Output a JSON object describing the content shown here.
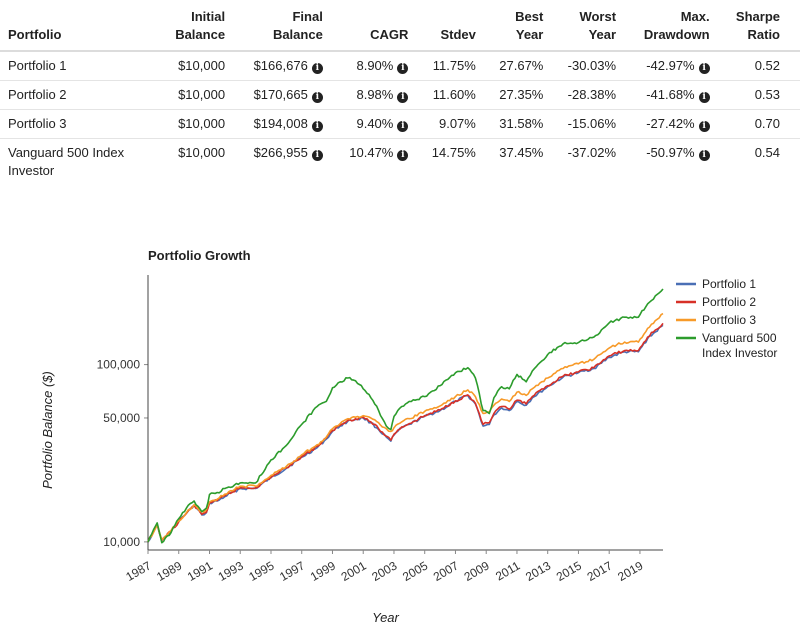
{
  "summary_table": {
    "headers": [
      {
        "line1": "",
        "line2": "Portfolio"
      },
      {
        "line1": "Initial",
        "line2": "Balance"
      },
      {
        "line1": "Final",
        "line2": "Balance"
      },
      {
        "line1": "",
        "line2": "CAGR"
      },
      {
        "line1": "",
        "line2": "Stdev"
      },
      {
        "line1": "Best",
        "line2": "Year"
      },
      {
        "line1": "Worst",
        "line2": "Year"
      },
      {
        "line1": "Max.",
        "line2": "Drawdown"
      },
      {
        "line1": "Sharpe",
        "line2": "Ratio"
      }
    ],
    "rows": [
      {
        "portfolio": "Portfolio 1",
        "portfolio2": "",
        "initial": "$10,000",
        "final": "$166,676",
        "cagr": "8.90%",
        "stdev": "11.75%",
        "best": "27.67%",
        "worst": "-30.03%",
        "drawdown": "-42.97%",
        "sharpe": "0.52"
      },
      {
        "portfolio": "Portfolio 2",
        "portfolio2": "",
        "initial": "$10,000",
        "final": "$170,665",
        "cagr": "8.98%",
        "stdev": "11.60%",
        "best": "27.35%",
        "worst": "-28.38%",
        "drawdown": "-41.68%",
        "sharpe": "0.53"
      },
      {
        "portfolio": "Portfolio 3",
        "portfolio2": "",
        "initial": "$10,000",
        "final": "$194,008",
        "cagr": "9.40%",
        "stdev": "9.07%",
        "best": "31.58%",
        "worst": "-15.06%",
        "drawdown": "-27.42%",
        "sharpe": "0.70"
      },
      {
        "portfolio": "Vanguard 500 Index",
        "portfolio2": "Investor",
        "initial": "$10,000",
        "final": "$266,955",
        "cagr": "10.47%",
        "stdev": "14.75%",
        "best": "37.45%",
        "worst": "-37.02%",
        "drawdown": "-50.97%",
        "sharpe": "0.54"
      }
    ],
    "info_glyph": "i"
  },
  "chart_data": {
    "type": "line",
    "title": "Portfolio Growth",
    "xlabel": "Year",
    "ylabel": "Portfolio Balance ($)",
    "yscale": "log",
    "ylim": [
      9000,
      300000
    ],
    "xlim": [
      1987,
      2020.5
    ],
    "yticks": [
      10000,
      50000,
      100000
    ],
    "ytick_labels": [
      "10,000",
      "50,000",
      "100,000"
    ],
    "xticks": [
      "1987",
      "1989",
      "1991",
      "1993",
      "1995",
      "1997",
      "1999",
      "2001",
      "2003",
      "2005",
      "2007",
      "2009",
      "2011",
      "2013",
      "2015",
      "2017",
      "2019"
    ],
    "legend_position": "right",
    "x": [
      1987,
      1987.6,
      1987.9,
      1988.5,
      1989,
      1989.5,
      1990,
      1990.5,
      1990.8,
      1991,
      1991.5,
      1992,
      1993,
      1994,
      1995,
      1996,
      1997,
      1998,
      1998.6,
      1999,
      1999.5,
      2000,
      2000.5,
      2001,
      2001.5,
      2002,
      2002.5,
      2002.8,
      2003,
      2003.5,
      2004,
      2005,
      2006,
      2007,
      2007.8,
      2008.3,
      2008.8,
      2009.2,
      2009.5,
      2010,
      2010.5,
      2011,
      2011.6,
      2012,
      2013,
      2014,
      2015,
      2016,
      2017,
      2018,
      2018.9,
      2019.5,
      2020.5
    ],
    "series": [
      {
        "name": "Portfolio 1",
        "color": "#4a6fb5",
        "values": [
          10000,
          12500,
          10200,
          11500,
          13000,
          14500,
          16000,
          14200,
          14600,
          16500,
          17000,
          18000,
          20000,
          20000,
          23000,
          26000,
          30000,
          34000,
          38000,
          42000,
          45000,
          48000,
          49000,
          50000,
          47000,
          43000,
          39000,
          37000,
          40000,
          44000,
          46000,
          51000,
          55000,
          62000,
          67000,
          60000,
          45000,
          46000,
          52000,
          57000,
          55000,
          62000,
          59000,
          65000,
          75000,
          85000,
          90000,
          95000,
          110000,
          118000,
          118000,
          140000,
          166676
        ]
      },
      {
        "name": "Portfolio 2",
        "color": "#d73027",
        "values": [
          10000,
          12500,
          10200,
          11500,
          13000,
          14500,
          16100,
          14300,
          14700,
          16600,
          17100,
          18200,
          20200,
          20200,
          23200,
          26200,
          30300,
          34500,
          38500,
          42500,
          45500,
          48500,
          49500,
          50500,
          47500,
          43500,
          39500,
          37500,
          40500,
          44500,
          46500,
          51500,
          55500,
          62500,
          67500,
          60500,
          46000,
          47000,
          53000,
          58000,
          56000,
          63000,
          60000,
          66000,
          76000,
          86000,
          91000,
          96000,
          112000,
          120000,
          120000,
          143000,
          170665
        ]
      },
      {
        "name": "Portfolio 3",
        "color": "#f79a29",
        "values": [
          10000,
          12500,
          10300,
          11600,
          13100,
          14600,
          16200,
          14800,
          15200,
          16800,
          17400,
          18600,
          20600,
          20600,
          23700,
          26700,
          31000,
          35300,
          39000,
          43500,
          46500,
          49500,
          50500,
          51500,
          50000,
          47000,
          43500,
          42000,
          44000,
          47500,
          49500,
          54500,
          58500,
          66000,
          72000,
          66000,
          53000,
          54000,
          59000,
          64000,
          62000,
          70000,
          67000,
          73000,
          84000,
          95000,
          101000,
          107000,
          124000,
          134000,
          134000,
          160000,
          194008
        ]
      },
      {
        "name": "Vanguard 500 Index Investor",
        "color": "#2c9c2c",
        "values": [
          10000,
          12800,
          9900,
          11300,
          13500,
          15500,
          17000,
          14800,
          15500,
          18500,
          19000,
          20000,
          21500,
          21500,
          29000,
          35000,
          46000,
          58000,
          62000,
          74000,
          80000,
          84000,
          81000,
          73000,
          65000,
          55000,
          45000,
          43000,
          51000,
          58000,
          62000,
          66000,
          76000,
          90000,
          96000,
          84000,
          55000,
          53000,
          65000,
          75000,
          73000,
          88000,
          80000,
          92000,
          114000,
          131000,
          133000,
          143000,
          172000,
          185000,
          185000,
          220000,
          266955
        ]
      }
    ]
  }
}
